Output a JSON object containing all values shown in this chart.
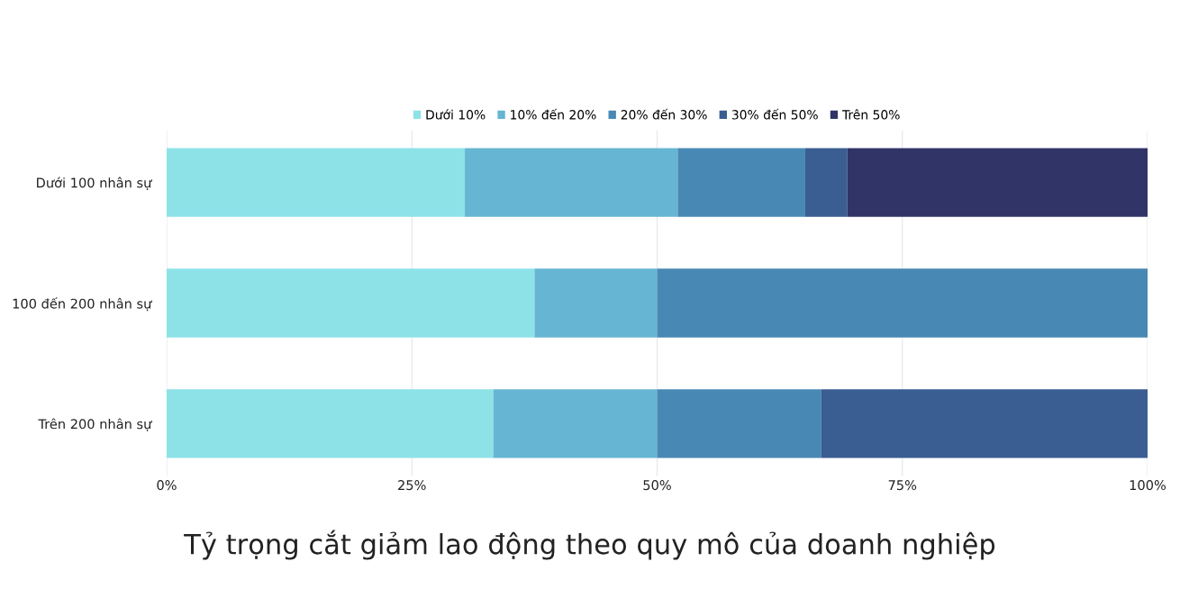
{
  "chart_data": {
    "type": "bar",
    "orientation": "horizontal",
    "stacked": true,
    "title": "Tỷ trọng cắt giảm lao động theo quy mô của doanh nghiệp",
    "categories": [
      "Dưới 100 nhân sự",
      "100 đến 200 nhân sự",
      "Trên 200 nhân sự"
    ],
    "series": [
      {
        "name": "Dưới 10%",
        "color": "#8de2e8",
        "values": [
          30.4,
          37.5,
          33.3
        ]
      },
      {
        "name": "10% đến 20%",
        "color": "#66b5d3",
        "values": [
          21.7,
          12.5,
          16.7
        ]
      },
      {
        "name": "20% đến 30%",
        "color": "#4888b4",
        "values": [
          13.0,
          50.0,
          16.7
        ]
      },
      {
        "name": "30% đến 50%",
        "color": "#3a5e92",
        "values": [
          4.3,
          0,
          33.3
        ]
      },
      {
        "name": "Trên 50%",
        "color": "#313467",
        "values": [
          30.6,
          0,
          0
        ]
      }
    ],
    "xlim": [
      0,
      100
    ],
    "xticks": [
      {
        "value": 0,
        "label": "0%"
      },
      {
        "value": 25,
        "label": "25%"
      },
      {
        "value": 50,
        "label": "50%"
      },
      {
        "value": 75,
        "label": "75%"
      },
      {
        "value": 100,
        "label": "100%"
      }
    ],
    "grid": "x",
    "legend": "top"
  }
}
